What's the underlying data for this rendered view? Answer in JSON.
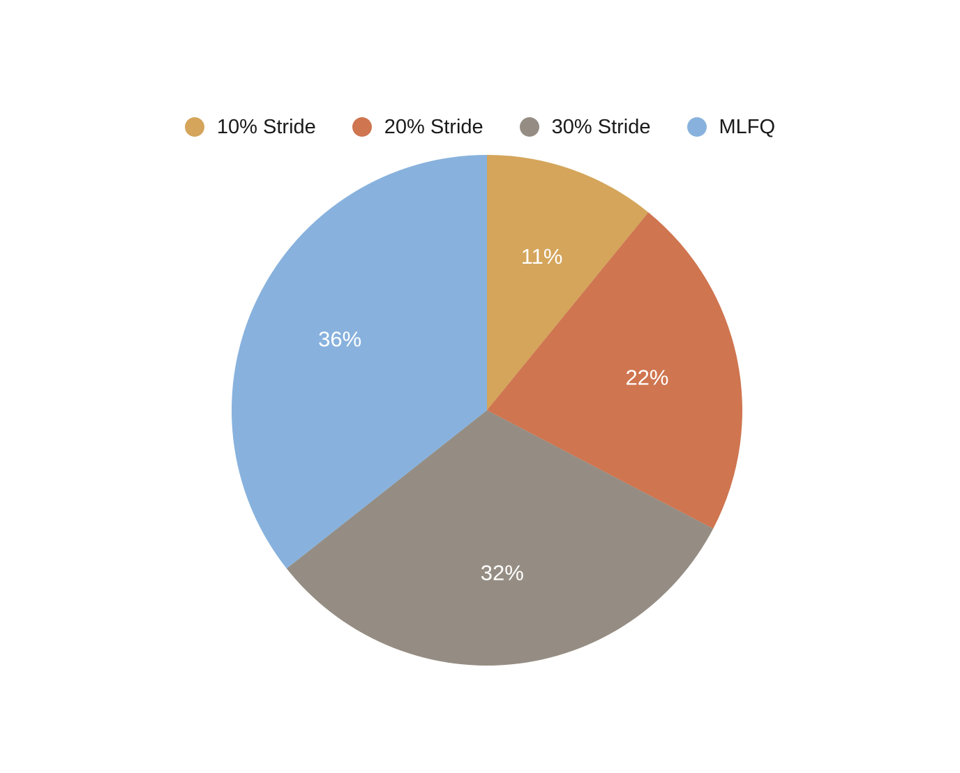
{
  "chart_data": {
    "type": "pie",
    "title": "",
    "categories": [
      "10% Stride",
      "20% Stride",
      "30% Stride",
      "MLFQ"
    ],
    "values": [
      11,
      22,
      32,
      36
    ],
    "labels": [
      "11%",
      "22%",
      "32%",
      "36%"
    ],
    "colors": [
      "#d4a55b",
      "#cf7550",
      "#958d83",
      "#88b2dd"
    ],
    "legend_position": "top",
    "start_angle": "12 o'clock",
    "direction": "clockwise"
  }
}
